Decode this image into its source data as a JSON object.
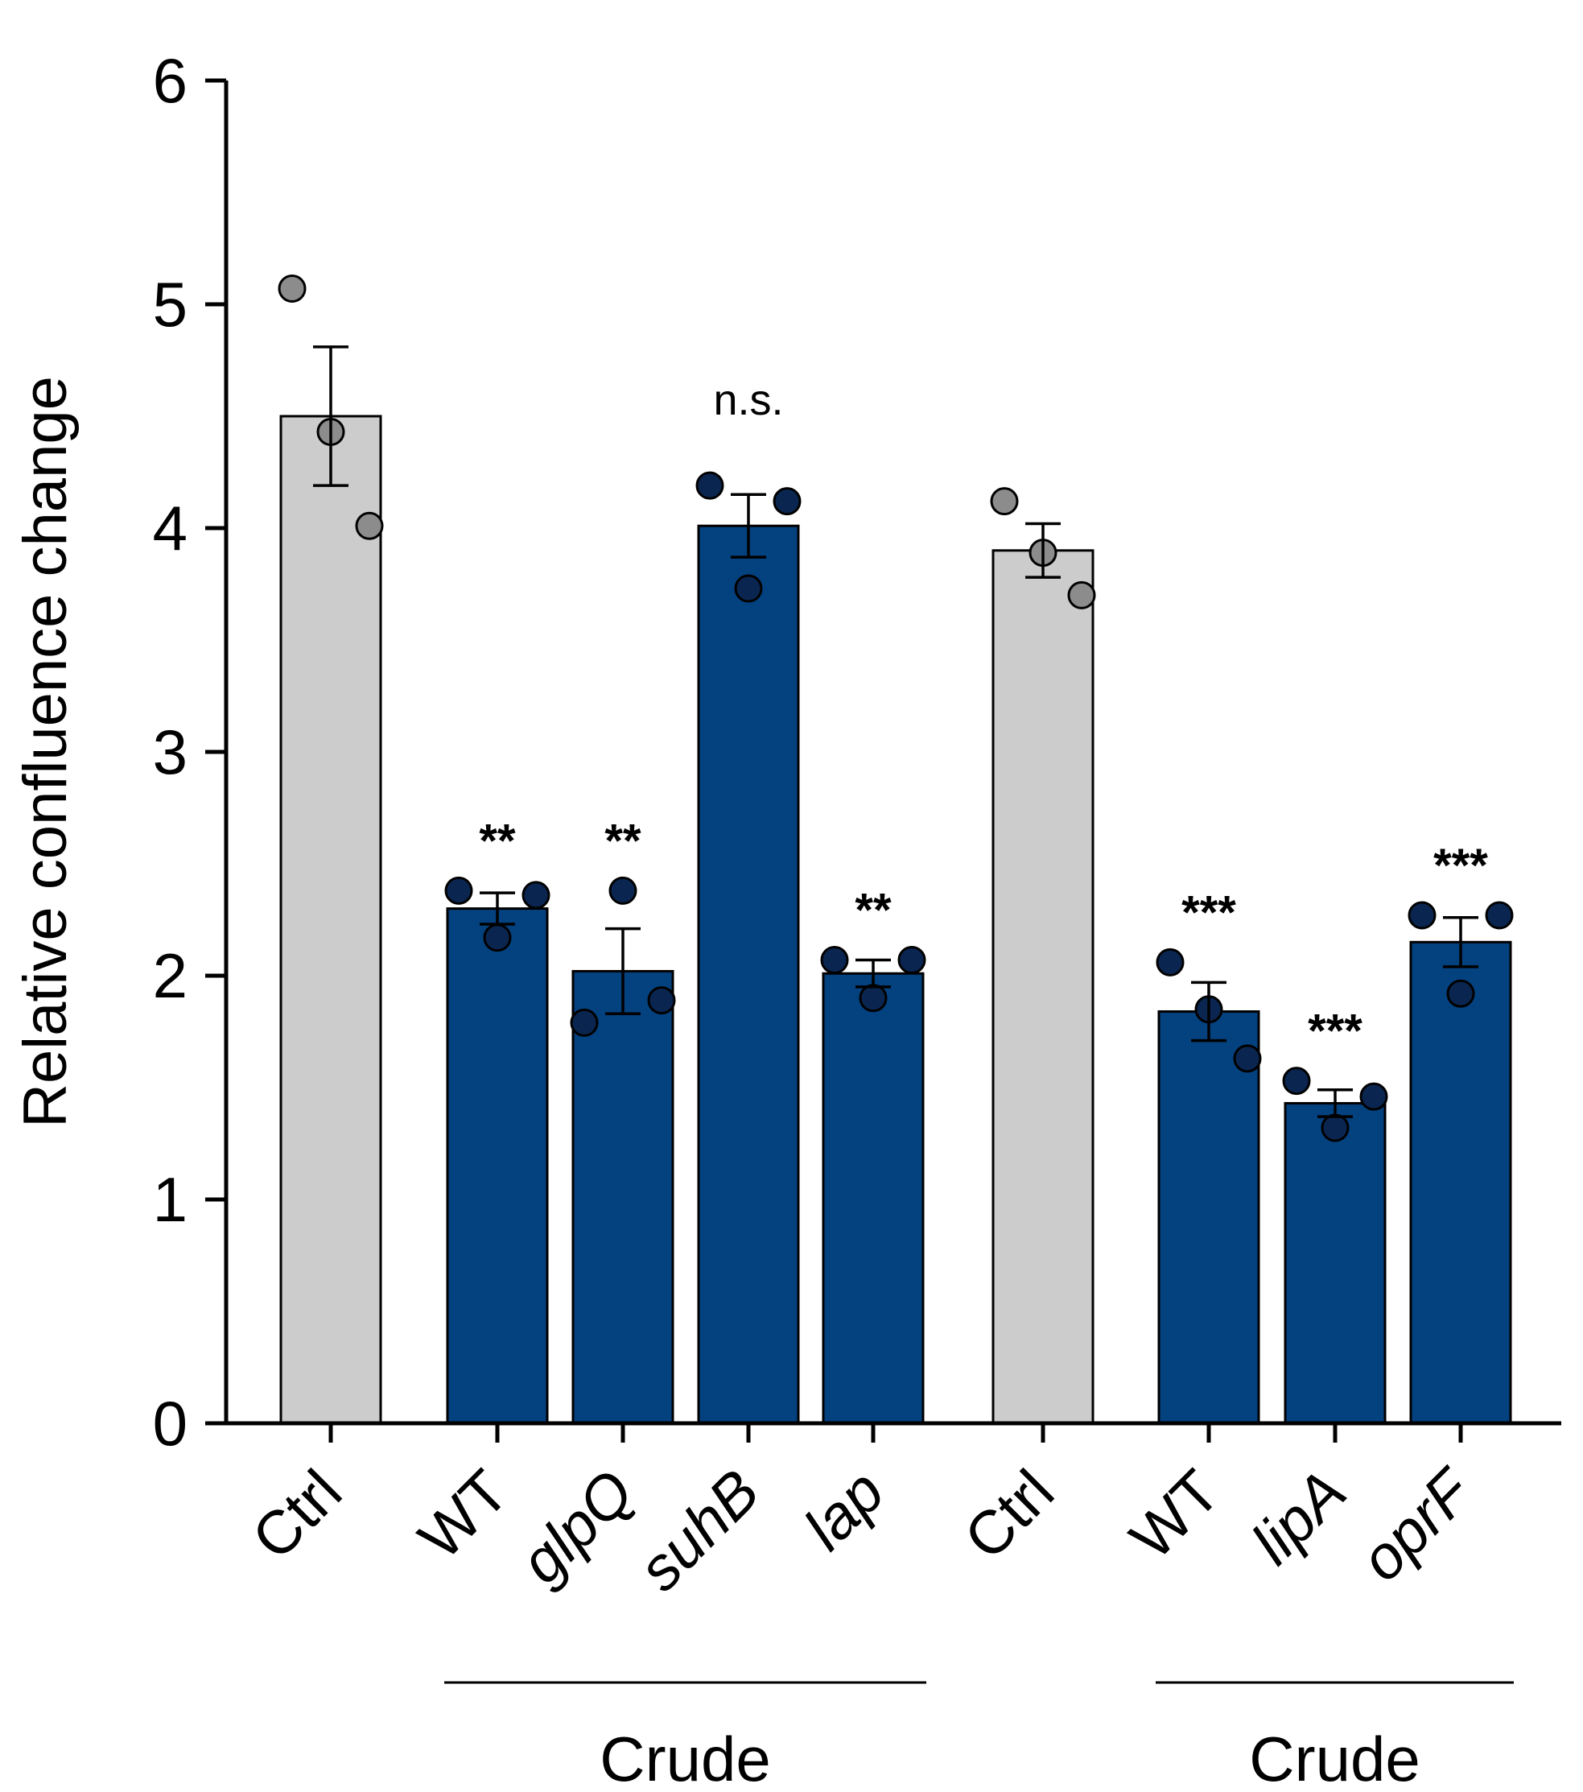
{
  "chart_data": {
    "type": "bar",
    "title": "",
    "xlabel": "",
    "ylabel": "Relative confluence change",
    "ylim": [
      0,
      6
    ],
    "yticks": [
      "0",
      "1",
      "2",
      "3",
      "4",
      "5",
      "6"
    ],
    "grid": false,
    "colors": {
      "ctrl_bar": "#cccccc",
      "treated_bar": "#03417f",
      "ctrl_point": "#8c8c8c",
      "treated_point": "#0a2650",
      "outline": "#000000"
    },
    "bars": [
      {
        "label": "Ctrl",
        "italic": false,
        "kind": "ctrl",
        "value": 4.5,
        "sem": 0.31,
        "points": [
          5.07,
          4.43,
          4.01
        ],
        "sig": ""
      },
      {
        "label": "WT",
        "italic": false,
        "kind": "treated",
        "value": 2.3,
        "sem": 0.07,
        "points": [
          2.38,
          2.17,
          2.36
        ],
        "sig": "**"
      },
      {
        "label": "glpQ",
        "italic": true,
        "kind": "treated",
        "value": 2.02,
        "sem": 0.19,
        "points": [
          1.79,
          2.38,
          1.89
        ],
        "sig": "**"
      },
      {
        "label": "suhB",
        "italic": true,
        "kind": "treated",
        "value": 4.01,
        "sem": 0.14,
        "points": [
          4.19,
          3.73,
          4.12
        ],
        "sig": "n.s."
      },
      {
        "label": "lap",
        "italic": true,
        "kind": "treated",
        "value": 2.01,
        "sem": 0.06,
        "points": [
          2.07,
          1.9,
          2.07
        ],
        "sig": "**"
      },
      {
        "label": "Ctrl",
        "italic": false,
        "kind": "ctrl",
        "value": 3.9,
        "sem": 0.12,
        "points": [
          4.12,
          3.89,
          3.7
        ],
        "sig": ""
      },
      {
        "label": "WT",
        "italic": false,
        "kind": "treated",
        "value": 1.84,
        "sem": 0.13,
        "points": [
          2.06,
          1.85,
          1.63
        ],
        "sig": "***"
      },
      {
        "label": "lipA",
        "italic": true,
        "kind": "treated",
        "value": 1.43,
        "sem": 0.06,
        "points": [
          1.53,
          1.32,
          1.46
        ],
        "sig": "***"
      },
      {
        "label": "oprF",
        "italic": true,
        "kind": "treated",
        "value": 2.15,
        "sem": 0.11,
        "points": [
          2.27,
          1.92,
          2.27
        ],
        "sig": "***"
      }
    ],
    "groups": [
      {
        "label": "Crude",
        "bars": [
          1,
          4
        ]
      },
      {
        "label": "Crude",
        "bars": [
          6,
          8
        ]
      }
    ]
  }
}
